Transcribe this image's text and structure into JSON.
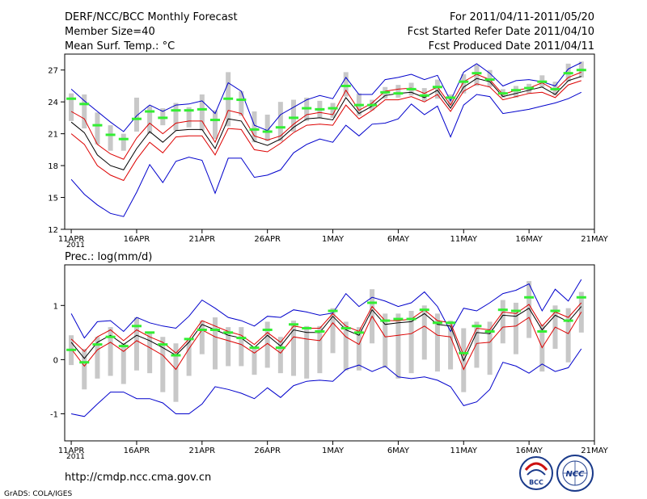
{
  "header": {
    "title": "DERF/NCC/BCC Monthly Forecast",
    "member_size": "Member Size=40",
    "variable": "Mean Surf. Temp.: °C",
    "period": "For 2011/04/11-2011/05/20",
    "refer_date": "Fcst Started Refer Date 2011/04/10",
    "produced_date": "Fcst Produced Date 2011/04/11"
  },
  "footer": {
    "url": "http://cmdp.ncc.cma.gov.cn",
    "grads": "GrADS: COLA/IGES",
    "logo_bcc": "BCC",
    "logo_ncc": "NCC"
  },
  "colors": {
    "box": "#c8c8c8",
    "median": "#33ee33",
    "mean": "#000000",
    "spread": "#dd0000",
    "extreme": "#0000cc"
  },
  "chart_data": [
    {
      "type": "line",
      "title": "Mean Surf. Temp.: °C",
      "days": [
        1,
        2,
        3,
        4,
        5,
        6,
        7,
        8,
        9,
        10,
        11,
        12,
        13,
        14,
        15,
        16,
        17,
        18,
        19,
        20,
        21,
        22,
        23,
        24,
        25,
        26,
        27,
        28,
        29,
        30,
        31,
        32,
        33,
        34,
        35,
        36,
        37,
        38,
        39,
        40
      ],
      "xticks": [
        {
          "day": 1,
          "label": "11APR"
        },
        {
          "day": 6,
          "label": "16APR"
        },
        {
          "day": 11,
          "label": "21APR"
        },
        {
          "day": 16,
          "label": "26APR"
        },
        {
          "day": 21,
          "label": "1MAY"
        },
        {
          "day": 26,
          "label": "6MAY"
        },
        {
          "day": 31,
          "label": "11MAY"
        },
        {
          "day": 36,
          "label": "16MAY"
        },
        {
          "day": 41,
          "label": "21MAY"
        }
      ],
      "year_label": "2011",
      "ylim": [
        12,
        28.5
      ],
      "yticks": [
        12,
        15,
        18,
        21,
        24,
        27
      ],
      "series": [
        {
          "name": "max",
          "role": "extreme",
          "values": [
            25.2,
            24.1,
            23.1,
            22.1,
            21.2,
            22.7,
            23.7,
            23.1,
            23.7,
            23.8,
            24.1,
            22.9,
            25.8,
            25.0,
            21.8,
            21.3,
            22.8,
            23.5,
            24.2,
            24.6,
            24.3,
            26.3,
            24.7,
            24.7,
            26.1,
            26.3,
            26.6,
            26.1,
            26.5,
            24.1,
            26.8,
            27.6,
            26.7,
            25.5,
            26.0,
            26.1,
            25.9,
            25.5,
            27.1,
            27.7
          ]
        },
        {
          "name": "upper",
          "role": "spread",
          "values": [
            23.1,
            22.4,
            20.0,
            19.1,
            18.6,
            20.6,
            22.0,
            21.0,
            22.0,
            22.2,
            22.2,
            20.2,
            23.2,
            22.9,
            20.8,
            20.4,
            20.8,
            21.9,
            22.8,
            23.0,
            22.8,
            25.1,
            23.2,
            23.9,
            25.0,
            25.2,
            25.3,
            24.8,
            25.4,
            23.7,
            25.9,
            26.6,
            26.1,
            24.7,
            25.1,
            25.3,
            25.8,
            25.1,
            26.3,
            26.8
          ]
        },
        {
          "name": "mean",
          "role": "mean",
          "values": [
            22.1,
            21.1,
            19.0,
            18.0,
            17.6,
            19.6,
            21.2,
            20.2,
            21.3,
            21.4,
            21.4,
            19.6,
            22.4,
            22.2,
            20.3,
            19.9,
            20.5,
            21.6,
            22.4,
            22.5,
            22.3,
            24.4,
            22.9,
            23.6,
            24.6,
            24.8,
            24.9,
            24.4,
            25.1,
            23.4,
            25.4,
            26.2,
            25.9,
            24.5,
            24.8,
            25.1,
            25.4,
            24.7,
            26.0,
            26.4
          ]
        },
        {
          "name": "lower",
          "role": "spread",
          "values": [
            21.0,
            20.0,
            18.0,
            17.1,
            16.6,
            18.6,
            20.2,
            19.2,
            20.7,
            20.8,
            20.8,
            19.0,
            21.5,
            21.4,
            19.5,
            19.3,
            20.1,
            21.1,
            21.8,
            21.9,
            21.8,
            23.7,
            22.4,
            23.2,
            24.2,
            24.2,
            24.5,
            24.0,
            24.7,
            23.1,
            25.0,
            25.7,
            25.4,
            24.2,
            24.5,
            24.8,
            24.9,
            24.4,
            25.6,
            26.0
          ]
        },
        {
          "name": "min",
          "role": "extreme",
          "values": [
            16.7,
            15.3,
            14.3,
            13.5,
            13.2,
            15.5,
            18.1,
            16.4,
            18.4,
            18.8,
            18.5,
            15.4,
            18.7,
            18.7,
            16.9,
            17.1,
            17.6,
            19.2,
            20.0,
            20.5,
            20.2,
            21.8,
            20.8,
            21.9,
            22.0,
            22.4,
            23.8,
            22.8,
            23.6,
            20.7,
            23.7,
            24.7,
            24.5,
            22.9,
            23.1,
            23.3,
            23.6,
            23.9,
            24.3,
            24.9
          ]
        }
      ],
      "boxes": {
        "q3": [
          24.8,
          24.7,
          23.0,
          21.8,
          21.0,
          24.4,
          23.6,
          23.4,
          23.9,
          23.5,
          24.7,
          23.2,
          26.8,
          25.0,
          23.1,
          22.8,
          24.0,
          24.2,
          24.4,
          24.1,
          23.9,
          26.8,
          24.8,
          24.2,
          25.4,
          25.6,
          25.8,
          25.3,
          26.1,
          24.7,
          26.6,
          27.5,
          27.0,
          25.2,
          25.5,
          25.7,
          26.5,
          25.9,
          27.6,
          27.8
        ],
        "q1": [
          22.2,
          21.5,
          20.0,
          19.4,
          19.4,
          21.2,
          21.0,
          21.8,
          21.3,
          21.6,
          21.3,
          20.5,
          21.7,
          22.7,
          20.2,
          20.3,
          20.3,
          21.2,
          22.2,
          22.5,
          22.5,
          24.5,
          22.7,
          23.2,
          24.3,
          24.4,
          24.6,
          24.1,
          24.3,
          23.6,
          24.8,
          25.5,
          25.4,
          24.4,
          24.4,
          24.8,
          25.4,
          24.6,
          25.9,
          26.3
        ],
        "median": [
          24.3,
          23.8,
          21.8,
          20.9,
          20.5,
          22.4,
          23.1,
          22.5,
          23.2,
          23.2,
          23.3,
          22.3,
          24.3,
          24.2,
          21.4,
          21.2,
          21.6,
          22.5,
          23.4,
          23.3,
          23.4,
          25.5,
          23.7,
          23.7,
          24.9,
          24.8,
          25.2,
          24.6,
          25.4,
          24.4,
          25.9,
          26.7,
          26.1,
          24.8,
          25.1,
          25.3,
          25.9,
          25.2,
          26.7,
          27.0
        ]
      }
    },
    {
      "type": "line",
      "title": "Prec.: log(mm/d)",
      "days": [
        1,
        2,
        3,
        4,
        5,
        6,
        7,
        8,
        9,
        10,
        11,
        12,
        13,
        14,
        15,
        16,
        17,
        18,
        19,
        20,
        21,
        22,
        23,
        24,
        25,
        26,
        27,
        28,
        29,
        30,
        31,
        32,
        33,
        34,
        35,
        36,
        37,
        38,
        39,
        40
      ],
      "xticks": [
        {
          "day": 1,
          "label": "11APR"
        },
        {
          "day": 6,
          "label": "16APR"
        },
        {
          "day": 11,
          "label": "21APR"
        },
        {
          "day": 16,
          "label": "26APR"
        },
        {
          "day": 21,
          "label": "1MAY"
        },
        {
          "day": 26,
          "label": "6MAY"
        },
        {
          "day": 31,
          "label": "11MAY"
        },
        {
          "day": 36,
          "label": "16MAY"
        },
        {
          "day": 41,
          "label": "21MAY"
        }
      ],
      "year_label": "2011",
      "ylim": [
        -1.5,
        1.75
      ],
      "yticks": [
        -1,
        0,
        1
      ],
      "series": [
        {
          "name": "max",
          "role": "extreme",
          "values": [
            0.85,
            0.4,
            0.7,
            0.72,
            0.52,
            0.78,
            0.68,
            0.62,
            0.58,
            0.8,
            1.1,
            0.95,
            0.78,
            0.72,
            0.62,
            0.8,
            0.78,
            0.92,
            0.88,
            0.82,
            0.86,
            1.22,
            0.98,
            1.15,
            1.08,
            0.98,
            1.05,
            1.25,
            0.98,
            0.52,
            0.95,
            0.9,
            1.05,
            1.22,
            1.28,
            1.4,
            0.9,
            1.3,
            1.08,
            1.48
          ]
        },
        {
          "name": "upper",
          "role": "spread",
          "values": [
            0.38,
            0.15,
            0.42,
            0.55,
            0.35,
            0.55,
            0.42,
            0.32,
            0.12,
            0.38,
            0.72,
            0.62,
            0.52,
            0.45,
            0.28,
            0.5,
            0.32,
            0.62,
            0.58,
            0.58,
            0.85,
            0.62,
            0.52,
            0.98,
            0.72,
            0.72,
            0.75,
            0.92,
            0.72,
            0.68,
            0.08,
            0.58,
            0.55,
            0.88,
            0.85,
            1.02,
            0.62,
            0.88,
            0.78,
            1.05
          ]
        },
        {
          "name": "mean",
          "role": "mean",
          "values": [
            0.32,
            0.02,
            0.32,
            0.45,
            0.28,
            0.45,
            0.35,
            0.22,
            0.08,
            0.32,
            0.65,
            0.55,
            0.45,
            0.4,
            0.22,
            0.45,
            0.25,
            0.55,
            0.5,
            0.5,
            0.8,
            0.55,
            0.45,
            0.92,
            0.65,
            0.68,
            0.7,
            0.85,
            0.65,
            0.62,
            -0.02,
            0.5,
            0.48,
            0.82,
            0.8,
            0.95,
            0.55,
            0.82,
            0.7,
            0.98
          ]
        },
        {
          "name": "lower",
          "role": "spread",
          "values": [
            0.2,
            -0.12,
            0.18,
            0.32,
            0.15,
            0.35,
            0.22,
            0.08,
            -0.18,
            0.2,
            0.55,
            0.42,
            0.35,
            0.28,
            0.12,
            0.3,
            0.12,
            0.42,
            0.38,
            0.35,
            0.68,
            0.42,
            0.28,
            0.8,
            0.42,
            0.45,
            0.48,
            0.62,
            0.45,
            0.42,
            -0.18,
            0.3,
            0.32,
            0.6,
            0.62,
            0.78,
            0.22,
            0.6,
            0.48,
            0.88
          ]
        },
        {
          "name": "min",
          "role": "extreme",
          "values": [
            -1.0,
            -1.05,
            -0.82,
            -0.6,
            -0.6,
            -0.72,
            -0.72,
            -0.8,
            -1.0,
            -1.0,
            -0.82,
            -0.5,
            -0.55,
            -0.62,
            -0.72,
            -0.52,
            -0.7,
            -0.48,
            -0.4,
            -0.38,
            -0.4,
            -0.18,
            -0.1,
            -0.22,
            -0.12,
            -0.32,
            -0.35,
            -0.32,
            -0.38,
            -0.5,
            -0.85,
            -0.78,
            -0.55,
            -0.05,
            -0.12,
            -0.25,
            -0.08,
            -0.22,
            -0.15,
            0.2
          ]
        }
      ],
      "boxes": {
        "q3": [
          0.45,
          0.2,
          0.42,
          0.6,
          0.3,
          0.78,
          0.5,
          0.42,
          0.3,
          0.4,
          0.72,
          0.78,
          0.6,
          0.6,
          0.22,
          0.7,
          0.42,
          0.72,
          0.62,
          0.62,
          0.95,
          0.7,
          0.6,
          1.3,
          0.85,
          0.85,
          0.9,
          1.0,
          0.85,
          0.72,
          0.58,
          0.7,
          0.7,
          1.1,
          1.05,
          1.45,
          0.65,
          1.0,
          0.95,
          1.25
        ],
        "q1": [
          -0.1,
          -0.55,
          -0.35,
          -0.3,
          -0.45,
          -0.2,
          -0.25,
          -0.6,
          -0.78,
          -0.3,
          0.1,
          -0.18,
          -0.12,
          -0.12,
          -0.28,
          -0.15,
          -0.25,
          -0.3,
          -0.35,
          -0.25,
          0.12,
          -0.2,
          -0.2,
          0.3,
          -0.15,
          -0.35,
          -0.25,
          0.0,
          -0.22,
          -0.18,
          -0.6,
          -0.15,
          -0.28,
          0.3,
          0.1,
          0.4,
          -0.22,
          0.2,
          -0.05,
          0.5
        ],
        "median": [
          0.18,
          -0.05,
          0.28,
          0.42,
          0.25,
          0.62,
          0.5,
          0.28,
          0.08,
          0.38,
          0.55,
          0.55,
          0.5,
          0.4,
          0.22,
          0.55,
          0.22,
          0.65,
          0.58,
          0.52,
          0.9,
          0.58,
          0.5,
          1.05,
          0.72,
          0.75,
          0.75,
          0.92,
          0.68,
          0.68,
          0.12,
          0.62,
          0.52,
          0.92,
          0.9,
          1.15,
          0.52,
          0.9,
          0.72,
          1.15
        ]
      }
    }
  ]
}
